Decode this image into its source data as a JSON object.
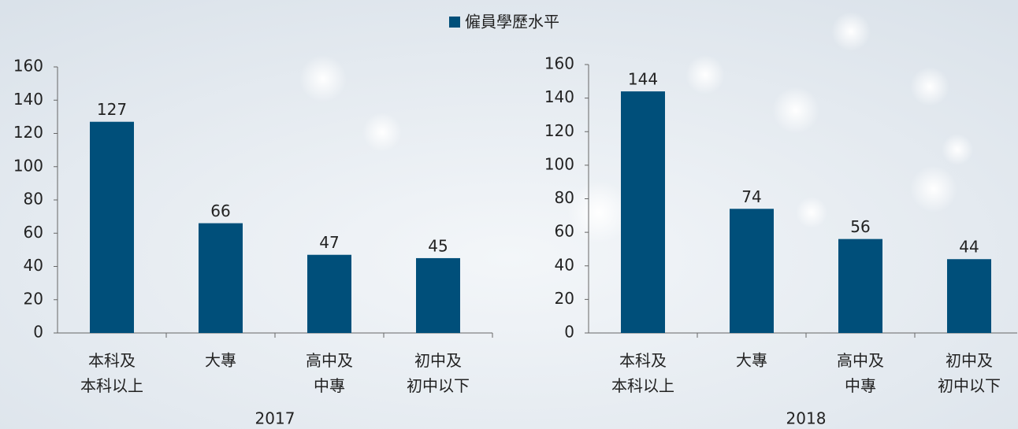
{
  "legend": {
    "label": "僱員學歷水平",
    "color": "#004f7a"
  },
  "chart_data": [
    {
      "type": "bar",
      "xlabel": "2017",
      "categories": [
        "本科及\n本科以上",
        "大專",
        "高中及\n中專",
        "初中及\n初中以下"
      ],
      "values": [
        127,
        66,
        47,
        45
      ],
      "ylim": [
        0,
        160
      ],
      "yticks": [
        0,
        20,
        40,
        60,
        80,
        100,
        120,
        140,
        160
      ]
    },
    {
      "type": "bar",
      "xlabel": "2018",
      "categories": [
        "本科及\n本科以上",
        "大專",
        "高中及\n中專",
        "初中及\n初中以下"
      ],
      "values": [
        144,
        74,
        56,
        44
      ],
      "ylim": [
        0,
        160
      ],
      "yticks": [
        0,
        20,
        40,
        60,
        80,
        100,
        120,
        140,
        160
      ]
    }
  ]
}
